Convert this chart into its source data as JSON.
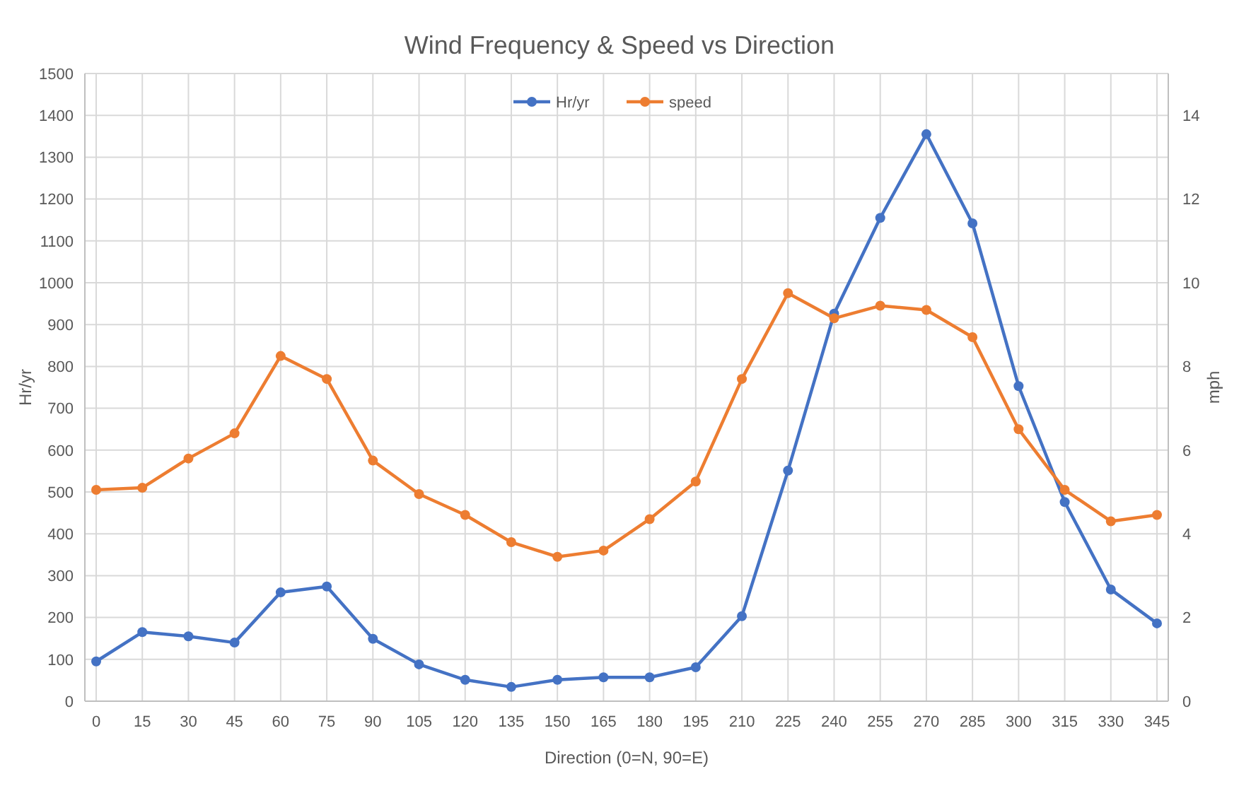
{
  "chart_data": {
    "type": "line",
    "title": "Wind Frequency & Speed vs Direction",
    "xlabel": "Direction (0=N, 90=E)",
    "ylabel": "Hr/yr",
    "y2label": "mph",
    "categories": [
      "0",
      "15",
      "30",
      "45",
      "60",
      "75",
      "90",
      "105",
      "120",
      "135",
      "150",
      "165",
      "180",
      "195",
      "210",
      "225",
      "240",
      "255",
      "270",
      "285",
      "300",
      "315",
      "330",
      "345"
    ],
    "series": [
      {
        "name": "Hr/yr",
        "color": "#4472c4",
        "values": [
          95,
          165,
          155,
          140,
          260,
          274,
          149,
          88,
          51,
          34,
          51,
          57,
          57,
          81,
          203,
          551,
          926,
          1155,
          1355,
          1142,
          753,
          476,
          267,
          186
        ]
      },
      {
        "name": "speed",
        "color": "#ed7d31",
        "axis": "y2",
        "values": [
          5.05,
          5.1,
          5.8,
          6.4,
          8.25,
          7.7,
          5.75,
          4.95,
          4.45,
          3.8,
          3.45,
          3.6,
          4.35,
          5.25,
          7.7,
          9.75,
          9.15,
          9.45,
          9.35,
          8.7,
          6.5,
          5.05,
          4.3,
          4.45
        ]
      }
    ],
    "ylim": [
      0,
      1500
    ],
    "yticks": [
      0,
      100,
      200,
      300,
      400,
      500,
      600,
      700,
      800,
      900,
      1000,
      1100,
      1200,
      1300,
      1400,
      1500
    ],
    "y2lim": [
      0,
      15
    ],
    "y2ticks": [
      0,
      2,
      4,
      6,
      8,
      10,
      12,
      14
    ],
    "grid": true,
    "legend": "top",
    "marker": "circle",
    "line_style": "solid"
  }
}
